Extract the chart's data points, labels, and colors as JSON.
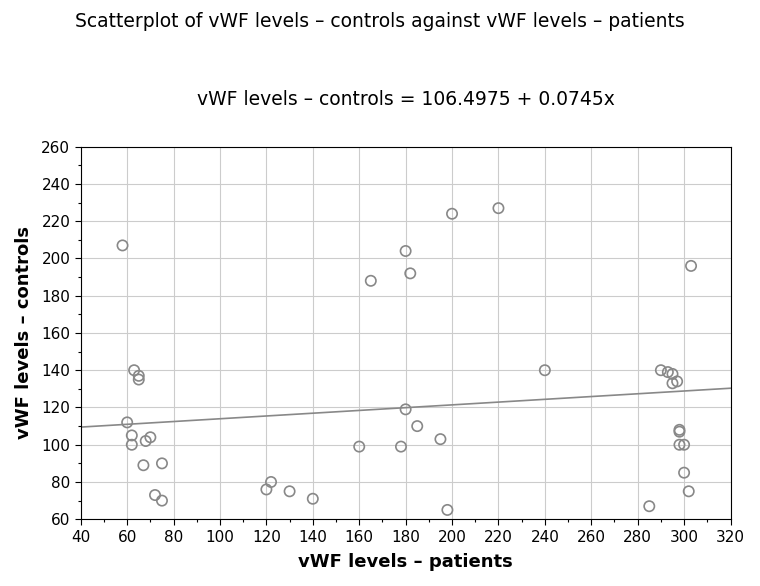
{
  "title_line1": "Scatterplot of vWF levels – controls against vWF levels – patients",
  "title_line2": "vWF levels – controls = 106.4975 + 0.0745x",
  "xlabel": "vWF levels – patients",
  "ylabel": "vWF levels – controls",
  "xlim": [
    40,
    320
  ],
  "ylim": [
    60,
    260
  ],
  "xticks": [
    40,
    60,
    80,
    100,
    120,
    140,
    160,
    180,
    200,
    220,
    240,
    260,
    280,
    300,
    320
  ],
  "yticks": [
    60,
    80,
    100,
    120,
    140,
    160,
    180,
    200,
    220,
    240,
    260
  ],
  "intercept": 106.4975,
  "slope": 0.0745,
  "scatter_x": [
    58,
    60,
    62,
    62,
    63,
    65,
    65,
    67,
    68,
    70,
    72,
    75,
    75,
    120,
    122,
    130,
    140,
    160,
    165,
    178,
    180,
    180,
    182,
    185,
    195,
    198,
    200,
    220,
    240,
    285,
    290,
    293,
    295,
    295,
    297,
    298,
    298,
    298,
    300,
    300,
    302,
    303
  ],
  "scatter_y": [
    207,
    112,
    100,
    105,
    140,
    135,
    137,
    89,
    102,
    104,
    73,
    90,
    70,
    76,
    80,
    75,
    71,
    99,
    188,
    99,
    119,
    204,
    192,
    110,
    103,
    65,
    224,
    227,
    140,
    67,
    140,
    139,
    138,
    133,
    134,
    100,
    108,
    107,
    100,
    85,
    75,
    196
  ],
  "line_color": "#888888",
  "scatter_color": "#888888",
  "background_color": "#ffffff",
  "grid_color": "#cccccc",
  "title_fontsize": 13.5,
  "subtitle_fontsize": 13.5,
  "label_fontsize": 13,
  "tick_fontsize": 11
}
